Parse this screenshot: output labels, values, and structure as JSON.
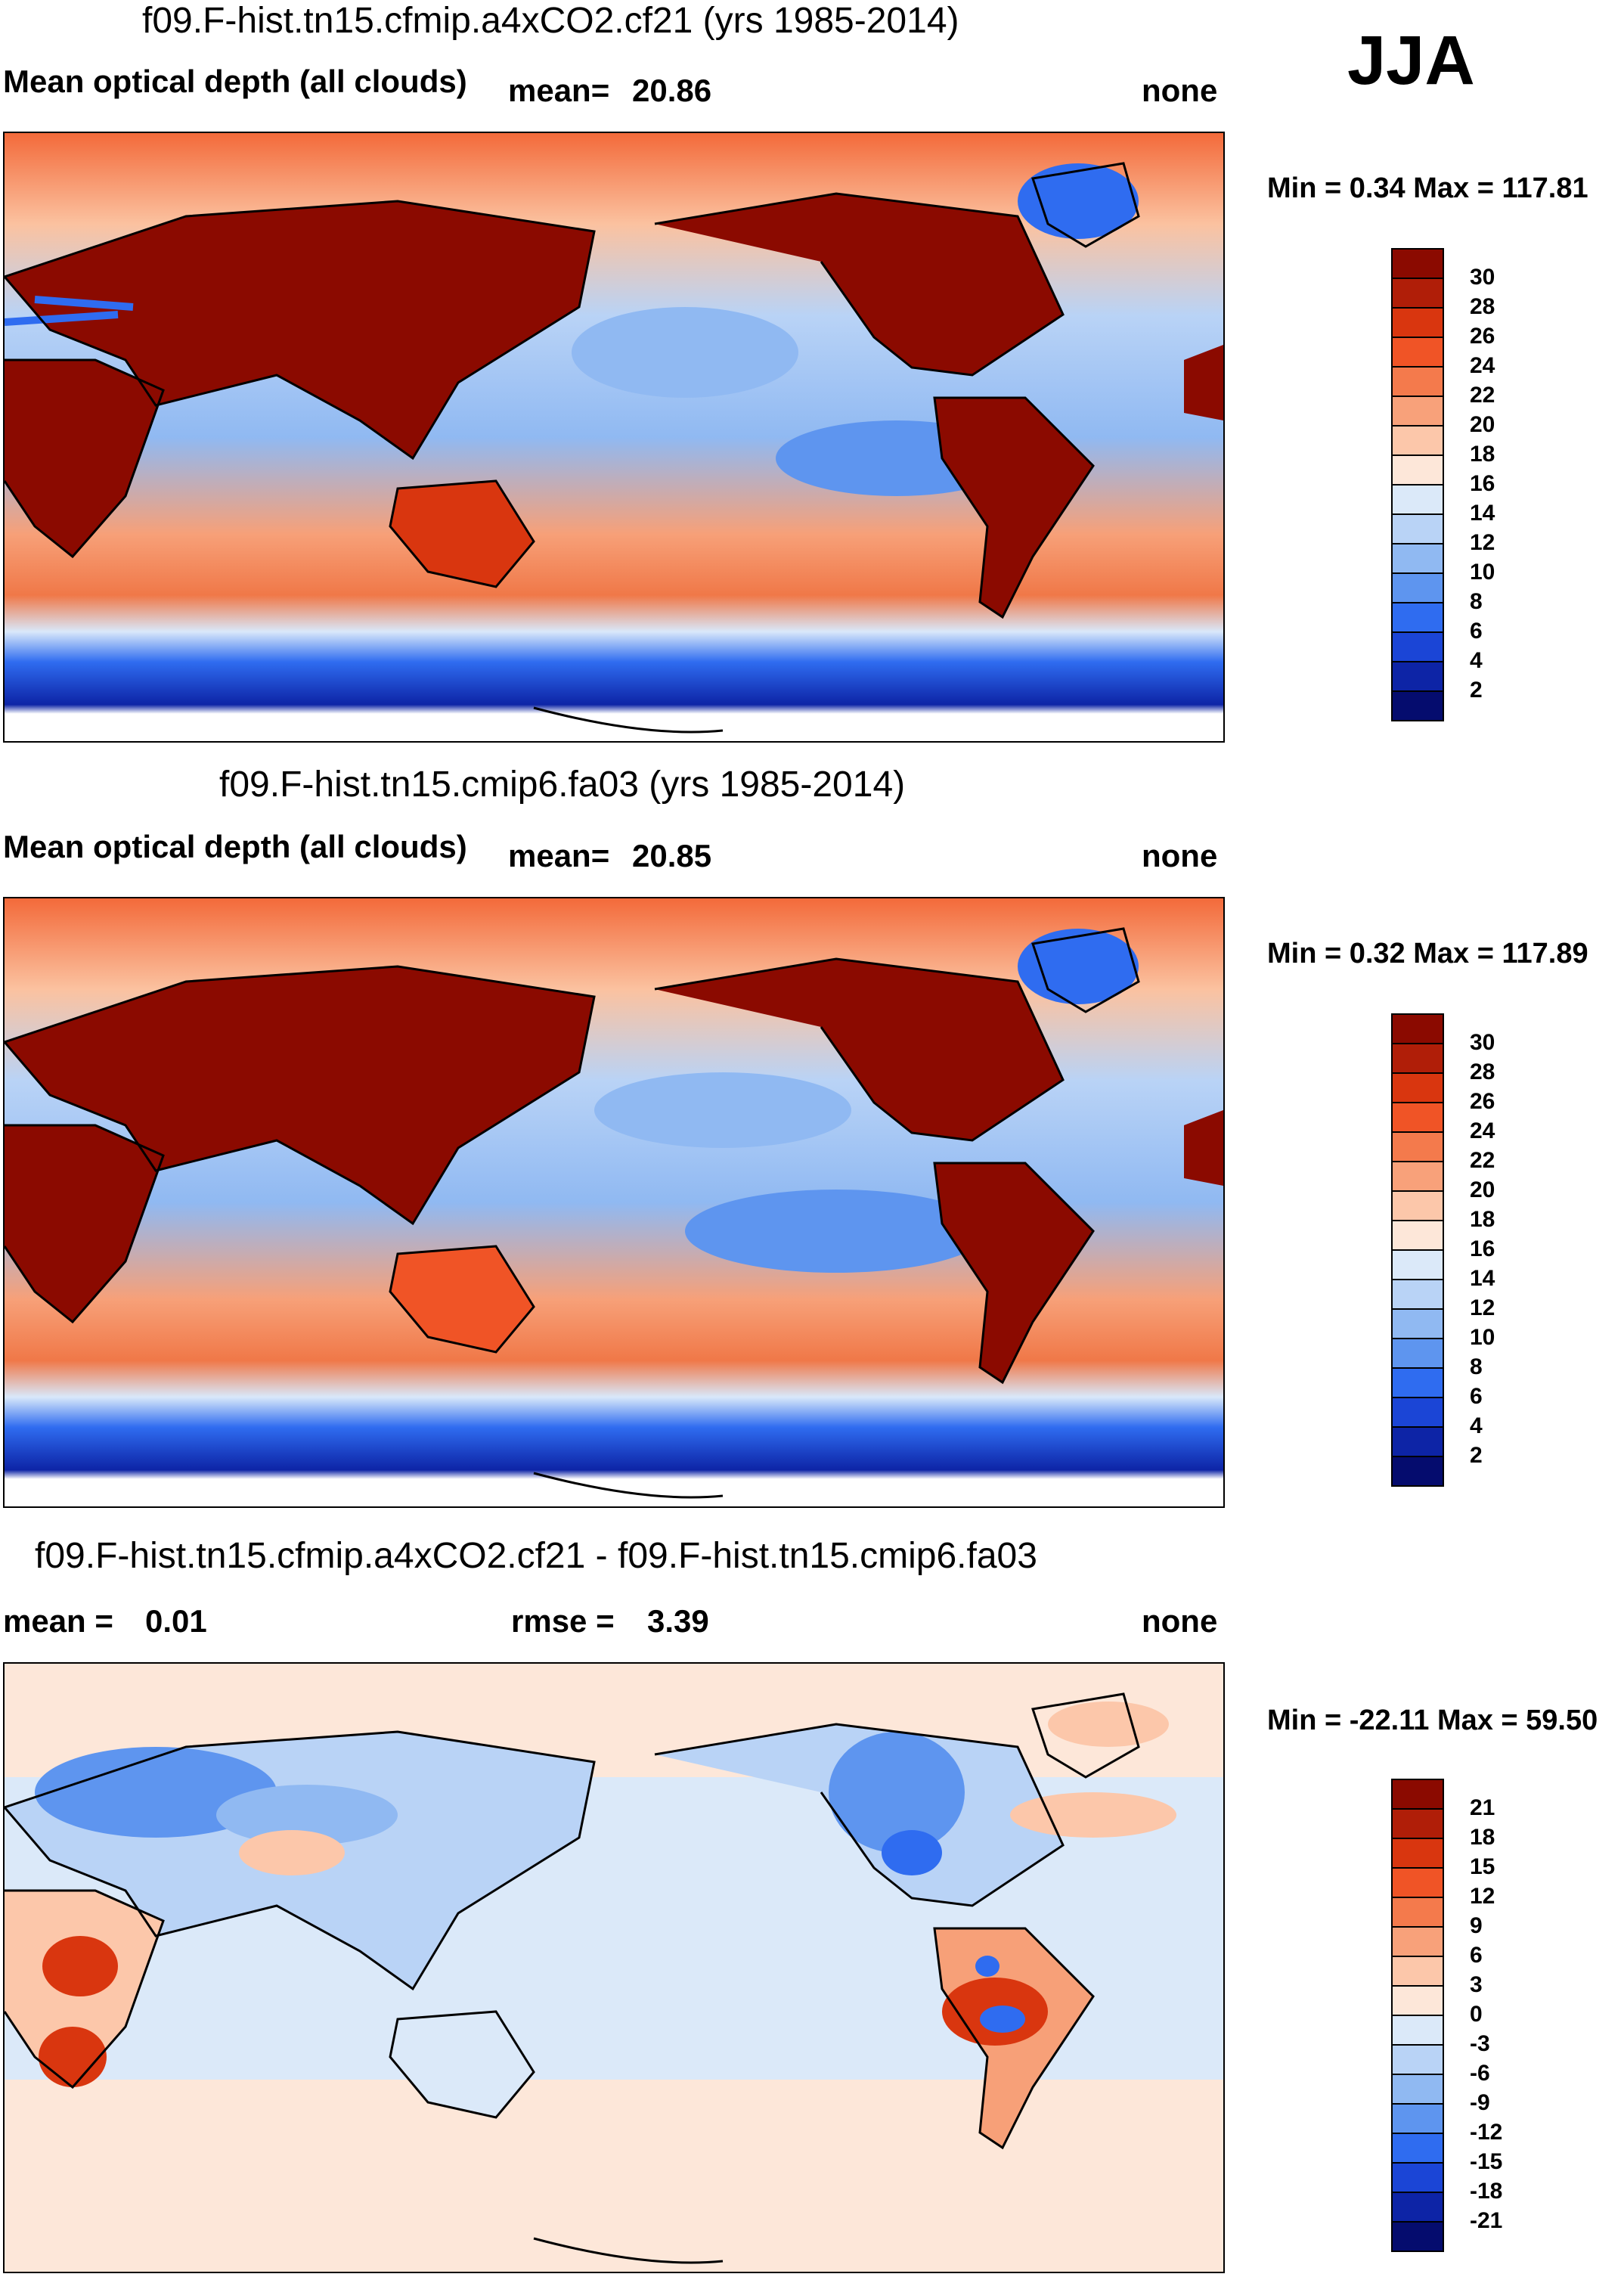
{
  "season": "JJA",
  "panels": [
    {
      "title": "f09.F-hist.tn15.cfmip.a4xCO2.cf21 (yrs 1985-2014)",
      "left_label": "Mean optical depth (all clouds)",
      "mean_label": "mean=",
      "mean_value": "20.86",
      "right_label": "none",
      "minmax": "Min =   0.34 Max = 117.81"
    },
    {
      "title": "f09.F-hist.tn15.cmip6.fa03 (yrs 1985-2014)",
      "left_label": "Mean optical depth (all clouds)",
      "mean_label": "mean=",
      "mean_value": "20.85",
      "right_label": "none",
      "minmax": "Min =   0.32 Max = 117.89"
    },
    {
      "title": "f09.F-hist.tn15.cfmip.a4xCO2.cf21 - f09.F-hist.tn15.cmip6.fa03",
      "left_label": "mean =",
      "left_value": "0.01",
      "rmse_label": "rmse =",
      "rmse_value": "3.39",
      "right_label": "none",
      "minmax": "Min = -22.11 Max =  59.50"
    }
  ],
  "colorbars": {
    "abs": {
      "ticks": [
        "30",
        "28",
        "26",
        "24",
        "22",
        "20",
        "18",
        "16",
        "14",
        "12",
        "10",
        "8",
        "6",
        "4",
        "2"
      ],
      "colors": [
        "#8b0a00",
        "#b01e08",
        "#d9360f",
        "#f05426",
        "#f47a4c",
        "#f8a17a",
        "#fcc7aa",
        "#fde7d9",
        "#dbe9f9",
        "#b9d3f6",
        "#90b9f2",
        "#5e95ef",
        "#2f6cf0",
        "#1b45d6",
        "#0d24a6",
        "#050c6e"
      ]
    },
    "diff": {
      "ticks": [
        "21",
        "18",
        "15",
        "12",
        "9",
        "6",
        "3",
        "0",
        "-3",
        "-6",
        "-9",
        "-12",
        "-15",
        "-18",
        "-21"
      ],
      "colors": [
        "#8b0a00",
        "#b01e08",
        "#d9360f",
        "#f05426",
        "#f47a4c",
        "#f8a17a",
        "#fcc7aa",
        "#fde7d9",
        "#dbe9f9",
        "#b9d3f6",
        "#90b9f2",
        "#5e95ef",
        "#2f6cf0",
        "#1b45d6",
        "#0d24a6",
        "#050c6e"
      ]
    }
  },
  "chart_data": [
    {
      "type": "heatmap",
      "title": "f09.F-hist.tn15.cfmip.a4xCO2.cf21 (yrs 1985-2014)",
      "variable": "Mean optical depth (all clouds)",
      "units": "none",
      "mean": 20.86,
      "min": 0.34,
      "max": 117.81,
      "colorbar_levels": [
        2,
        4,
        6,
        8,
        10,
        12,
        14,
        16,
        18,
        20,
        22,
        24,
        26,
        28,
        30
      ]
    },
    {
      "type": "heatmap",
      "title": "f09.F-hist.tn15.cmip6.fa03 (yrs 1985-2014)",
      "variable": "Mean optical depth (all clouds)",
      "units": "none",
      "mean": 20.85,
      "min": 0.32,
      "max": 117.89,
      "colorbar_levels": [
        2,
        4,
        6,
        8,
        10,
        12,
        14,
        16,
        18,
        20,
        22,
        24,
        26,
        28,
        30
      ]
    },
    {
      "type": "heatmap",
      "title": "f09.F-hist.tn15.cfmip.a4xCO2.cf21 - f09.F-hist.tn15.cmip6.fa03",
      "units": "none",
      "mean": 0.01,
      "rmse": 3.39,
      "min": -22.11,
      "max": 59.5,
      "colorbar_levels": [
        -21,
        -18,
        -15,
        -12,
        -9,
        -6,
        -3,
        0,
        3,
        6,
        9,
        12,
        15,
        18,
        21
      ]
    }
  ]
}
